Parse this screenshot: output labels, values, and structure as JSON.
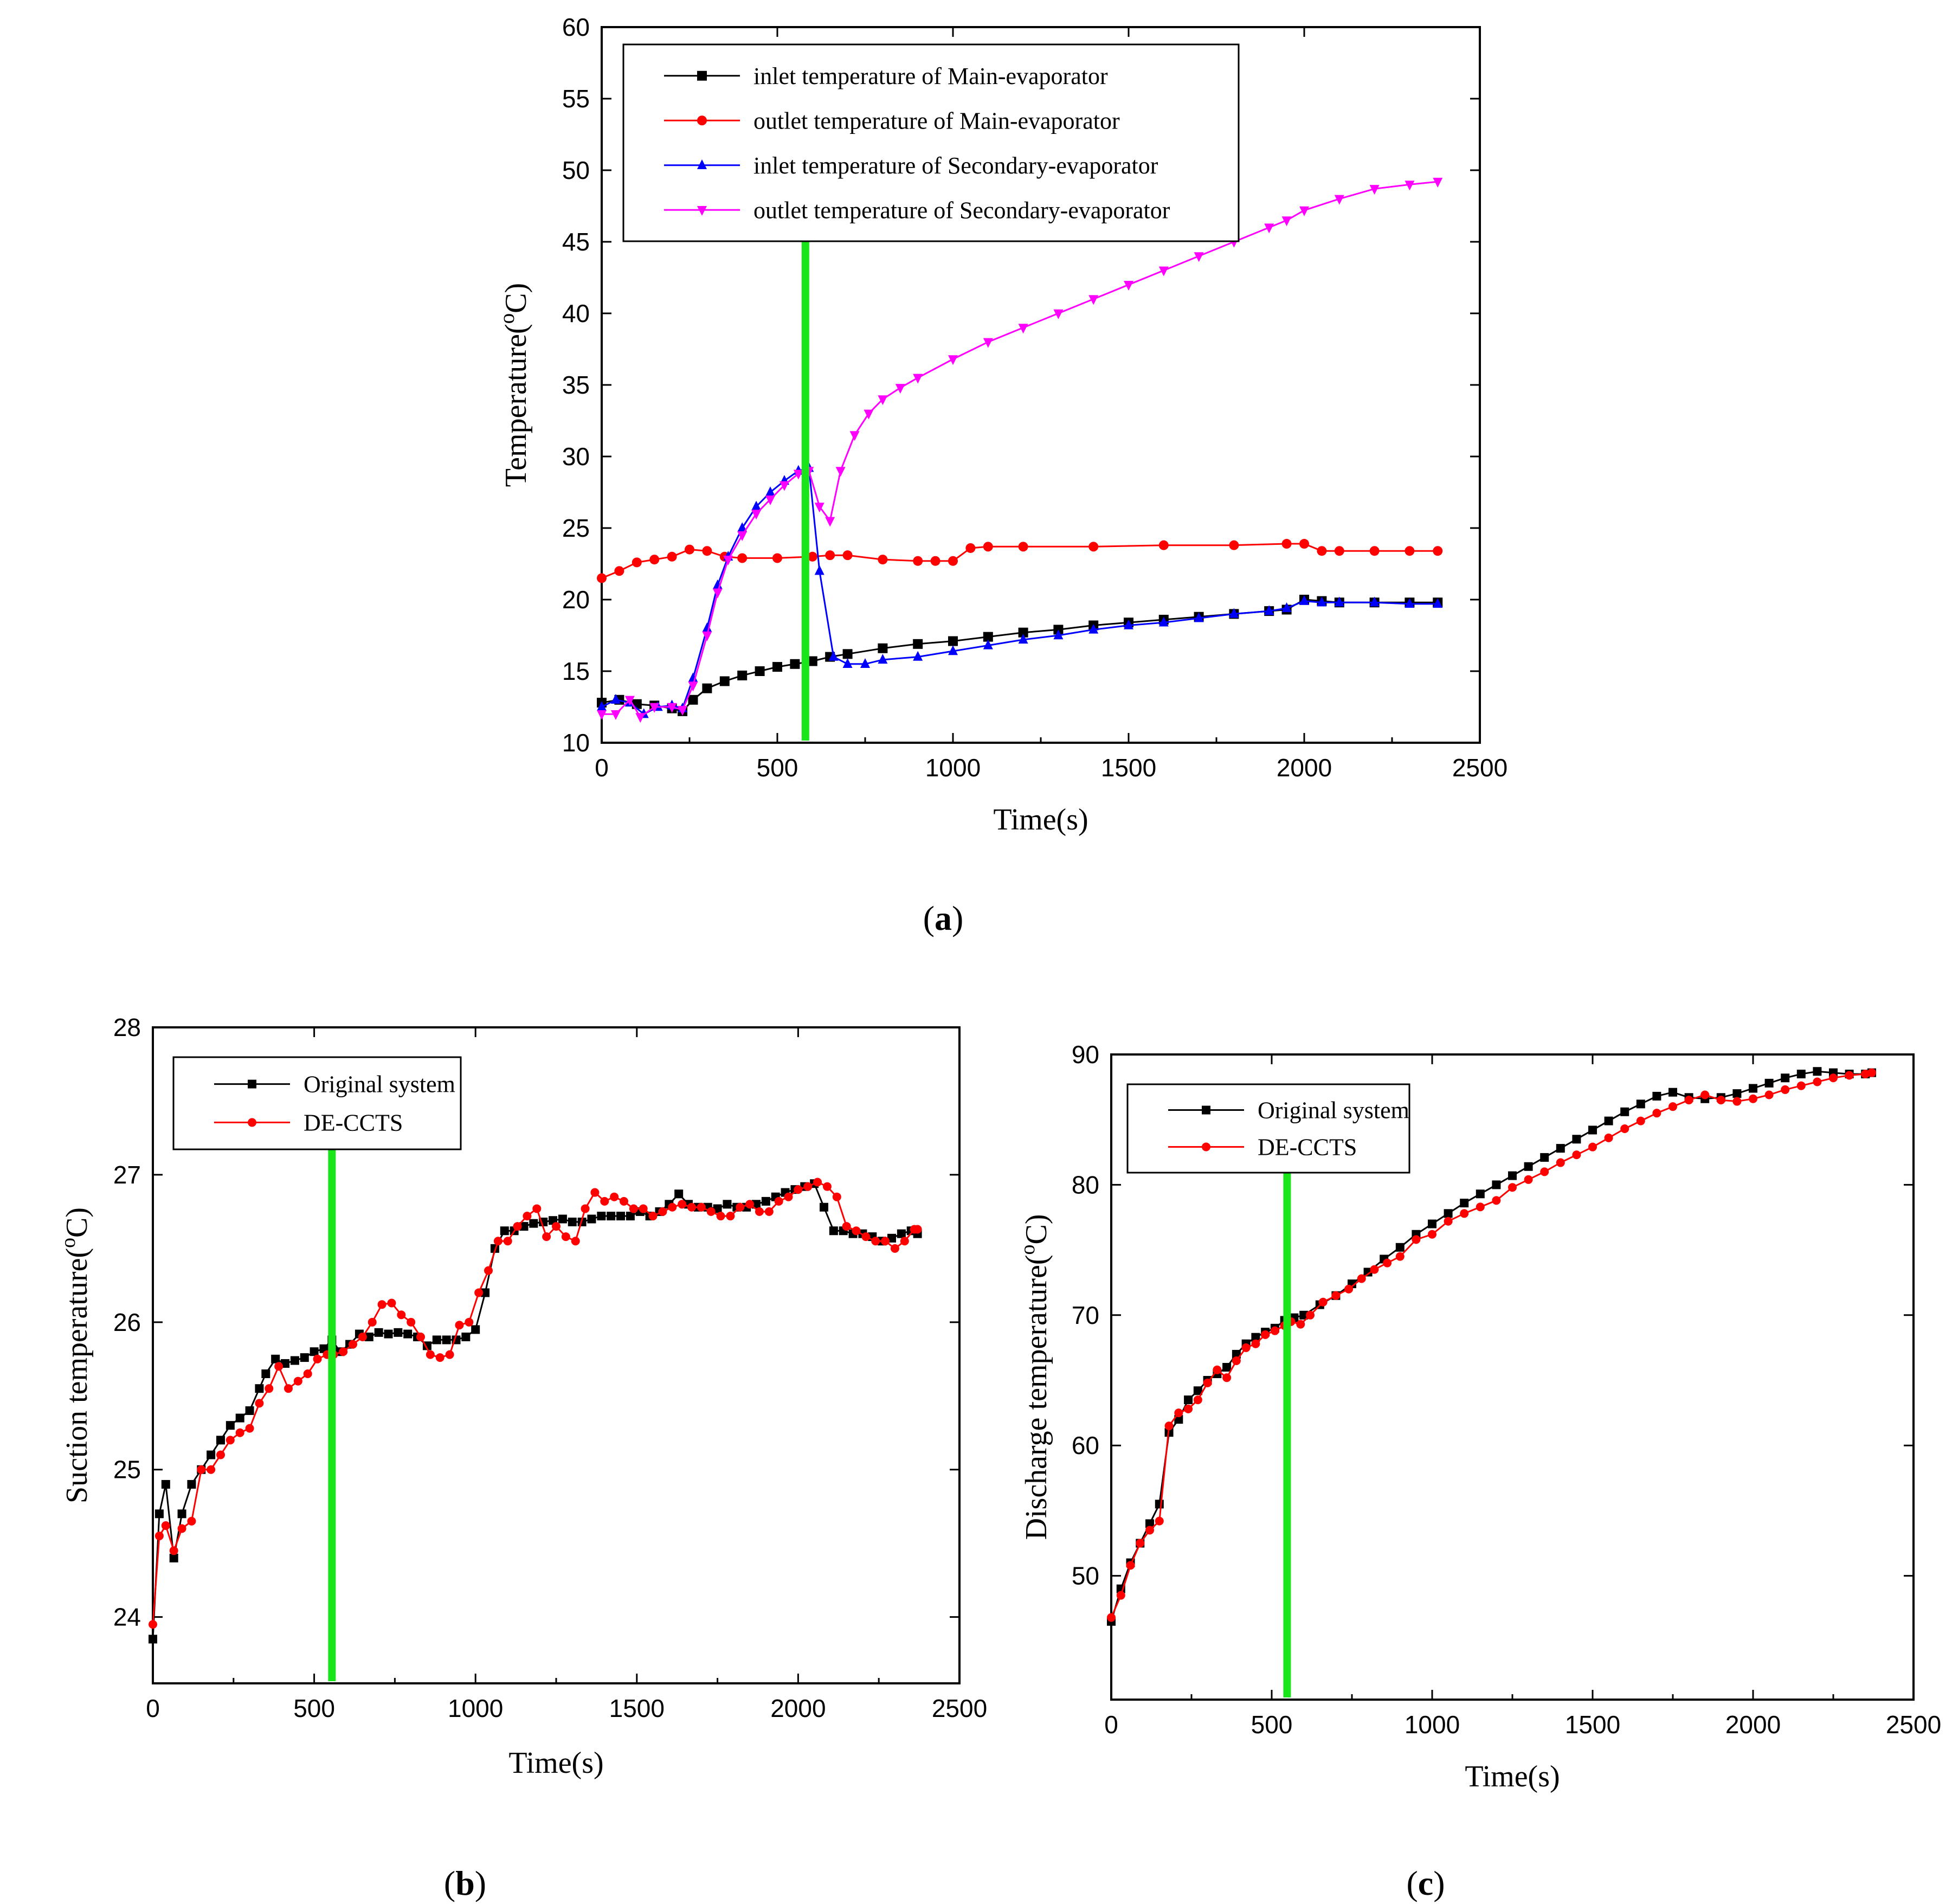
{
  "chart_data": [
    {
      "id": "a",
      "panel_label": {
        "open": "(",
        "letter": "a",
        "close": ")"
      },
      "type": "line",
      "xlabel": "Time(s)",
      "ylabel_main": "Temperature(",
      "ylabel_sup": "o",
      "ylabel_end": "C)",
      "xlim": [
        0,
        2500
      ],
      "ylim": [
        10,
        60
      ],
      "xticks": [
        0,
        500,
        1000,
        1500,
        2000,
        2500
      ],
      "yticks": [
        10,
        15,
        20,
        25,
        30,
        35,
        40,
        45,
        50,
        55,
        60
      ],
      "marker_line_x": 580,
      "marker_line_color": "#19e619",
      "legend_position": "top-left",
      "series": [
        {
          "name": "inlet temperature of Main-evaporator",
          "color": "#000000",
          "marker": "square",
          "x": [
            0,
            50,
            100,
            150,
            200,
            230,
            260,
            300,
            350,
            400,
            450,
            500,
            550,
            600,
            650,
            700,
            800,
            900,
            1000,
            1100,
            1200,
            1300,
            1400,
            1500,
            1600,
            1700,
            1800,
            1900,
            1950,
            2000,
            2050,
            2100,
            2200,
            2300,
            2380
          ],
          "y": [
            12.8,
            13,
            12.7,
            12.6,
            12.4,
            12.2,
            13,
            13.8,
            14.3,
            14.7,
            15,
            15.3,
            15.5,
            15.7,
            16,
            16.2,
            16.6,
            16.9,
            17.1,
            17.4,
            17.7,
            17.9,
            18.2,
            18.4,
            18.6,
            18.8,
            19,
            19.2,
            19.3,
            20,
            19.9,
            19.8,
            19.8,
            19.8,
            19.8
          ]
        },
        {
          "name": "outlet temperature of Main-evaporator",
          "color": "#ff0000",
          "marker": "circle",
          "x": [
            0,
            50,
            100,
            150,
            200,
            250,
            300,
            350,
            400,
            500,
            600,
            650,
            700,
            800,
            900,
            950,
            1000,
            1050,
            1100,
            1200,
            1400,
            1600,
            1800,
            1950,
            2000,
            2050,
            2100,
            2200,
            2300,
            2380
          ],
          "y": [
            21.5,
            22,
            22.6,
            22.8,
            23,
            23.5,
            23.4,
            23,
            22.9,
            22.9,
            23,
            23.1,
            23.1,
            22.8,
            22.7,
            22.7,
            22.7,
            23.6,
            23.7,
            23.7,
            23.7,
            23.8,
            23.8,
            23.9,
            23.9,
            23.4,
            23.4,
            23.4,
            23.4,
            23.4
          ]
        },
        {
          "name": "inlet temperature of Secondary-evaporator",
          "color": "#0000ff",
          "marker": "triangle-up",
          "x": [
            0,
            40,
            80,
            120,
            160,
            200,
            230,
            260,
            300,
            330,
            360,
            400,
            440,
            480,
            520,
            560,
            590,
            620,
            660,
            700,
            750,
            800,
            900,
            1000,
            1100,
            1200,
            1300,
            1400,
            1500,
            1600,
            1700,
            1800,
            1900,
            1950,
            2000,
            2050,
            2100,
            2200,
            2300,
            2380
          ],
          "y": [
            12.5,
            13,
            12.8,
            12,
            12.5,
            12.6,
            12.4,
            14.5,
            18,
            21,
            23,
            25,
            26.5,
            27.5,
            28.3,
            29,
            29.2,
            22,
            16,
            15.5,
            15.5,
            15.8,
            16,
            16.4,
            16.8,
            17.2,
            17.5,
            17.9,
            18.2,
            18.4,
            18.7,
            19,
            19.2,
            19.4,
            19.9,
            19.8,
            19.8,
            19.8,
            19.7,
            19.7
          ]
        },
        {
          "name": "outlet temperature of Secondary-evaporator",
          "color": "#ff00ff",
          "marker": "triangle-down",
          "x": [
            0,
            40,
            80,
            110,
            150,
            200,
            230,
            260,
            300,
            330,
            360,
            400,
            440,
            480,
            520,
            560,
            590,
            620,
            650,
            680,
            720,
            760,
            800,
            850,
            900,
            1000,
            1100,
            1200,
            1300,
            1400,
            1500,
            1600,
            1700,
            1800,
            1900,
            1950,
            2000,
            2100,
            2200,
            2300,
            2380
          ],
          "y": [
            12,
            12,
            13,
            11.8,
            12.5,
            12.5,
            12.3,
            14,
            17.5,
            20.5,
            22.8,
            24.5,
            26,
            27,
            28,
            28.8,
            29,
            26.5,
            25.5,
            29,
            31.5,
            33,
            34,
            34.8,
            35.5,
            36.8,
            38,
            39,
            40,
            41,
            42,
            43,
            44,
            45,
            46,
            46.5,
            47.2,
            48,
            48.7,
            49,
            49.2
          ]
        }
      ]
    },
    {
      "id": "b",
      "panel_label": {
        "open": "(",
        "letter": "b",
        "close": ")"
      },
      "type": "line",
      "xlabel": "Time(s)",
      "ylabel_main": "Suction temperature(",
      "ylabel_sup": "o",
      "ylabel_end": "C)",
      "xlim": [
        0,
        2500
      ],
      "ylim": [
        23.55,
        28
      ],
      "xticks": [
        0,
        500,
        1000,
        1500,
        2000,
        2500
      ],
      "yticks": [
        24,
        25,
        26,
        27,
        28
      ],
      "marker_line_x": 555,
      "marker_line_color": "#19e619",
      "legend_position": "top-left",
      "series": [
        {
          "name": "Original system",
          "color": "#000000",
          "marker": "square",
          "x": [
            0,
            20,
            40,
            65,
            90,
            120,
            150,
            180,
            210,
            240,
            270,
            300,
            330,
            350,
            380,
            410,
            440,
            470,
            500,
            530,
            555,
            580,
            610,
            640,
            670,
            700,
            730,
            760,
            790,
            820,
            850,
            880,
            910,
            940,
            970,
            1000,
            1030,
            1060,
            1090,
            1120,
            1150,
            1180,
            1210,
            1240,
            1270,
            1300,
            1330,
            1360,
            1390,
            1420,
            1450,
            1480,
            1510,
            1540,
            1570,
            1600,
            1630,
            1660,
            1690,
            1720,
            1750,
            1780,
            1810,
            1840,
            1870,
            1900,
            1930,
            1960,
            1990,
            2020,
            2050,
            2080,
            2110,
            2140,
            2170,
            2200,
            2230,
            2260,
            2290,
            2320,
            2350,
            2370
          ],
          "y": [
            23.85,
            24.7,
            24.9,
            24.4,
            24.7,
            24.9,
            25.0,
            25.1,
            25.2,
            25.3,
            25.35,
            25.4,
            25.55,
            25.65,
            25.75,
            25.72,
            25.74,
            25.76,
            25.8,
            25.82,
            25.88,
            25.8,
            25.85,
            25.92,
            25.9,
            25.93,
            25.92,
            25.93,
            25.92,
            25.9,
            25.84,
            25.88,
            25.88,
            25.88,
            25.9,
            25.95,
            26.2,
            26.5,
            26.62,
            26.62,
            26.65,
            26.67,
            26.68,
            26.69,
            26.7,
            26.68,
            26.68,
            26.7,
            26.72,
            26.72,
            26.72,
            26.72,
            26.75,
            26.72,
            26.75,
            26.8,
            26.87,
            26.8,
            26.78,
            26.78,
            26.77,
            26.8,
            26.78,
            26.78,
            26.8,
            26.82,
            26.85,
            26.88,
            26.9,
            26.92,
            26.94,
            26.78,
            26.62,
            26.62,
            26.6,
            26.6,
            26.58,
            26.55,
            26.57,
            26.6,
            26.62,
            26.6
          ]
        },
        {
          "name": "DE-CCTS",
          "color": "#ff0000",
          "marker": "circle",
          "x": [
            0,
            20,
            40,
            65,
            90,
            120,
            150,
            180,
            210,
            240,
            270,
            300,
            330,
            360,
            390,
            420,
            450,
            480,
            510,
            540,
            560,
            590,
            620,
            650,
            680,
            710,
            740,
            770,
            800,
            830,
            860,
            890,
            920,
            950,
            980,
            1010,
            1040,
            1070,
            1100,
            1130,
            1160,
            1190,
            1220,
            1250,
            1280,
            1310,
            1340,
            1370,
            1400,
            1430,
            1460,
            1490,
            1520,
            1550,
            1580,
            1610,
            1640,
            1670,
            1700,
            1730,
            1760,
            1790,
            1820,
            1850,
            1880,
            1910,
            1940,
            1970,
            2000,
            2030,
            2060,
            2090,
            2120,
            2150,
            2180,
            2210,
            2240,
            2270,
            2300,
            2330,
            2360,
            2370
          ],
          "y": [
            23.95,
            24.55,
            24.62,
            24.45,
            24.6,
            24.65,
            25.0,
            25.0,
            25.1,
            25.2,
            25.25,
            25.28,
            25.45,
            25.55,
            25.7,
            25.55,
            25.6,
            25.65,
            25.75,
            25.78,
            25.78,
            25.8,
            25.85,
            25.9,
            26.0,
            26.12,
            26.13,
            26.05,
            26.0,
            25.9,
            25.78,
            25.76,
            25.78,
            25.98,
            26.0,
            26.2,
            26.35,
            26.55,
            26.55,
            26.65,
            26.72,
            26.77,
            26.58,
            26.65,
            26.58,
            26.55,
            26.77,
            26.88,
            26.82,
            26.85,
            26.82,
            26.77,
            26.77,
            26.72,
            26.75,
            26.78,
            26.8,
            26.78,
            26.78,
            26.75,
            26.72,
            26.72,
            26.78,
            26.8,
            26.75,
            26.75,
            26.82,
            26.85,
            26.9,
            26.92,
            26.95,
            26.92,
            26.85,
            26.65,
            26.62,
            26.58,
            26.55,
            26.55,
            26.5,
            26.55,
            26.63,
            26.63
          ]
        }
      ]
    },
    {
      "id": "c",
      "panel_label": {
        "open": "(",
        "letter": "c",
        "close": ")"
      },
      "type": "line",
      "xlabel": "Time(s)",
      "ylabel_main": "Discharge temperature(",
      "ylabel_sup": "o",
      "ylabel_end": "C)",
      "xlim": [
        0,
        2500
      ],
      "ylim": [
        40.5,
        90
      ],
      "xticks": [
        0,
        500,
        1000,
        1500,
        2000,
        2500
      ],
      "yticks": [
        50,
        60,
        70,
        80,
        90
      ],
      "marker_line_x": 548,
      "marker_line_color": "#19e619",
      "legend_position": "top-left",
      "series": [
        {
          "name": "Original system",
          "color": "#000000",
          "marker": "square",
          "x": [
            0,
            30,
            60,
            90,
            120,
            150,
            180,
            210,
            240,
            270,
            300,
            330,
            360,
            390,
            420,
            450,
            480,
            510,
            540,
            570,
            600,
            650,
            700,
            750,
            800,
            850,
            900,
            950,
            1000,
            1050,
            1100,
            1150,
            1200,
            1250,
            1300,
            1350,
            1400,
            1450,
            1500,
            1550,
            1600,
            1650,
            1700,
            1750,
            1800,
            1850,
            1900,
            1950,
            2000,
            2050,
            2100,
            2150,
            2200,
            2250,
            2300,
            2350,
            2370
          ],
          "y": [
            46.5,
            49,
            51,
            52.5,
            54,
            55.5,
            61,
            62,
            63.5,
            64.2,
            65,
            65.5,
            66,
            67,
            67.8,
            68.3,
            68.7,
            69,
            69.6,
            69.8,
            70,
            70.8,
            71.5,
            72.4,
            73.3,
            74.3,
            75.2,
            76.2,
            77,
            77.8,
            78.6,
            79.3,
            80,
            80.7,
            81.4,
            82.1,
            82.8,
            83.5,
            84.2,
            84.9,
            85.6,
            86.2,
            86.8,
            87.1,
            86.7,
            86.6,
            86.7,
            87,
            87.4,
            87.8,
            88.2,
            88.5,
            88.7,
            88.6,
            88.5,
            88.5,
            88.6
          ]
        },
        {
          "name": "DE-CCTS",
          "color": "#ff0000",
          "marker": "circle",
          "x": [
            0,
            30,
            60,
            90,
            120,
            150,
            180,
            210,
            240,
            270,
            300,
            330,
            360,
            390,
            420,
            450,
            480,
            510,
            540,
            560,
            590,
            620,
            660,
            700,
            740,
            780,
            820,
            860,
            900,
            950,
            1000,
            1050,
            1100,
            1150,
            1200,
            1250,
            1300,
            1350,
            1400,
            1450,
            1500,
            1550,
            1600,
            1650,
            1700,
            1750,
            1800,
            1850,
            1900,
            1950,
            2000,
            2050,
            2100,
            2150,
            2200,
            2250,
            2300,
            2350,
            2370
          ],
          "y": [
            46.8,
            48.5,
            50.8,
            52.5,
            53.5,
            54.2,
            61.5,
            62.5,
            62.8,
            63.5,
            64.8,
            65.8,
            65.2,
            66.5,
            67.5,
            67.8,
            68.5,
            68.8,
            69.2,
            69.5,
            69.3,
            70,
            71,
            71.5,
            72,
            72.8,
            73.5,
            74,
            74.5,
            75.8,
            76.2,
            77.2,
            77.8,
            78.3,
            78.8,
            79.8,
            80.4,
            81,
            81.7,
            82.3,
            82.9,
            83.6,
            84.3,
            84.9,
            85.5,
            86,
            86.5,
            86.9,
            86.5,
            86.4,
            86.6,
            86.9,
            87.3,
            87.6,
            87.9,
            88.2,
            88.4,
            88.5,
            88.6
          ]
        }
      ]
    }
  ]
}
